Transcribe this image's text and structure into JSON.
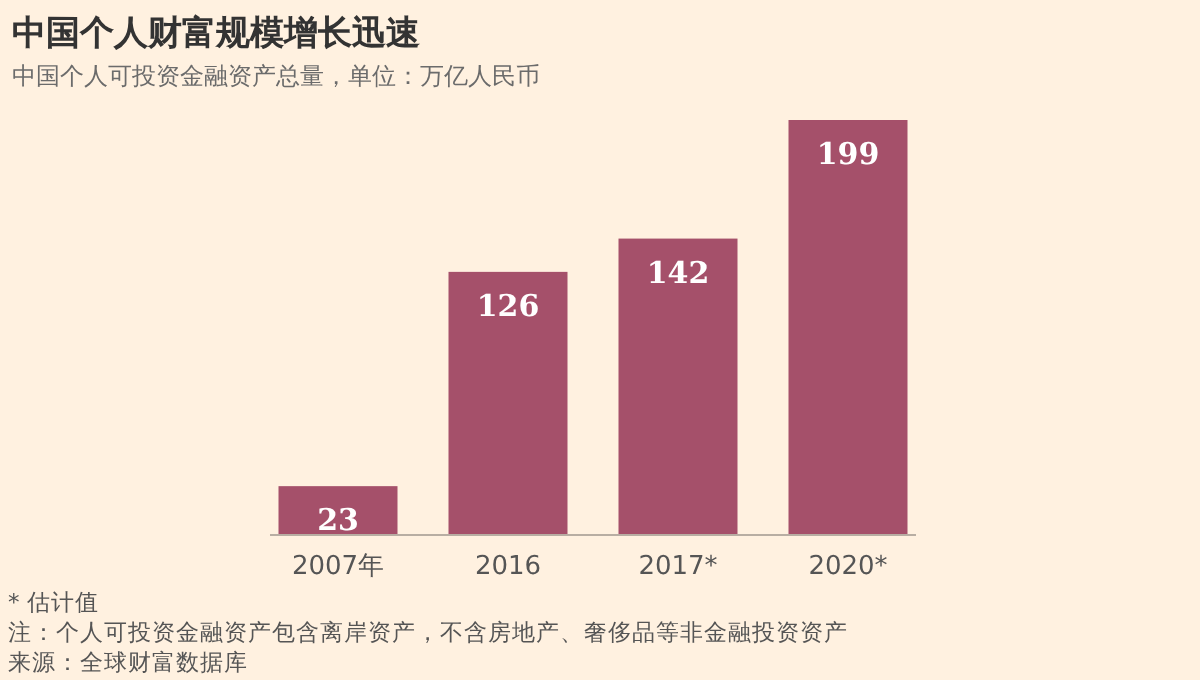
{
  "chart_data": {
    "type": "bar",
    "title": "中国个人财富规模增长迅速",
    "subtitle": "中国个人可投资金融资产总量，单位：万亿人民币",
    "categories": [
      "2007年",
      "2016",
      "2017*",
      "2020*"
    ],
    "values": [
      23,
      126,
      142,
      199
    ],
    "color": "#a5506a",
    "data_labels": true,
    "annotations": [
      "* 估计值",
      "注：个人可投资金融资产包含离岸资产，不含房地产、奢侈品等非金融投资资产",
      "来源：全球财富数据库"
    ]
  }
}
